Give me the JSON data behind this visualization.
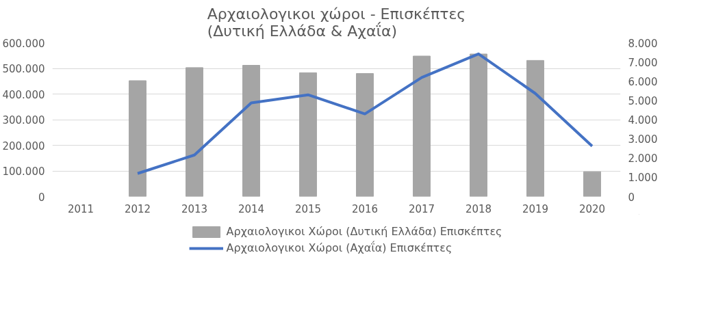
{
  "chart_data": {
    "type": "bar",
    "title": "Αρχαιολογικοι χώροι - Επισκέπτες\n(Δυτική Ελλάδα & Αχαΐα)",
    "categories": [
      "2011",
      "2012",
      "2013",
      "2014",
      "2015",
      "2016",
      "2017",
      "2018",
      "2019",
      "2020"
    ],
    "series": [
      {
        "name": "Αρχαιολογικοι Χώροι (Δυτική Ελλάδα) Επισκέπτες",
        "color": "#a5a5a5",
        "values": [
          null,
          452000,
          503000,
          512000,
          483000,
          480000,
          548000,
          556000,
          531000,
          97000
        ]
      },
      {
        "name": "Αρχαιολογικοι Χώροι (Αχαΐα) Επισκέπτες",
        "type": "line",
        "axis": "y2",
        "color": "#4472c4",
        "values": [
          null,
          1200,
          2160,
          4870,
          5290,
          4300,
          6190,
          7420,
          5360,
          2620
        ]
      }
    ],
    "ylim": [
      0,
      600000
    ],
    "yticks": [
      {
        "value": 0,
        "label": "0"
      },
      {
        "value": 100000,
        "label": "100.000"
      },
      {
        "value": 200000,
        "label": "200.000"
      },
      {
        "value": 300000,
        "label": "300.000"
      },
      {
        "value": 400000,
        "label": "400.000"
      },
      {
        "value": 500000,
        "label": "500.000"
      },
      {
        "value": 600000,
        "label": "600.000"
      }
    ],
    "y2lim": [
      0,
      8000
    ],
    "y2ticks": [
      {
        "value": 0,
        "label": "0"
      },
      {
        "value": 1000,
        "label": "1.000"
      },
      {
        "value": 2000,
        "label": "2.000"
      },
      {
        "value": 3000,
        "label": "3.000"
      },
      {
        "value": 4000,
        "label": "4.000"
      },
      {
        "value": 5000,
        "label": "5.000"
      },
      {
        "value": 6000,
        "label": "6.000"
      },
      {
        "value": 7000,
        "label": "7.000"
      },
      {
        "value": 8000,
        "label": "8.000"
      }
    ],
    "grid": "y",
    "legend": "bottom",
    "line_style": "solid",
    "marker": "none"
  }
}
